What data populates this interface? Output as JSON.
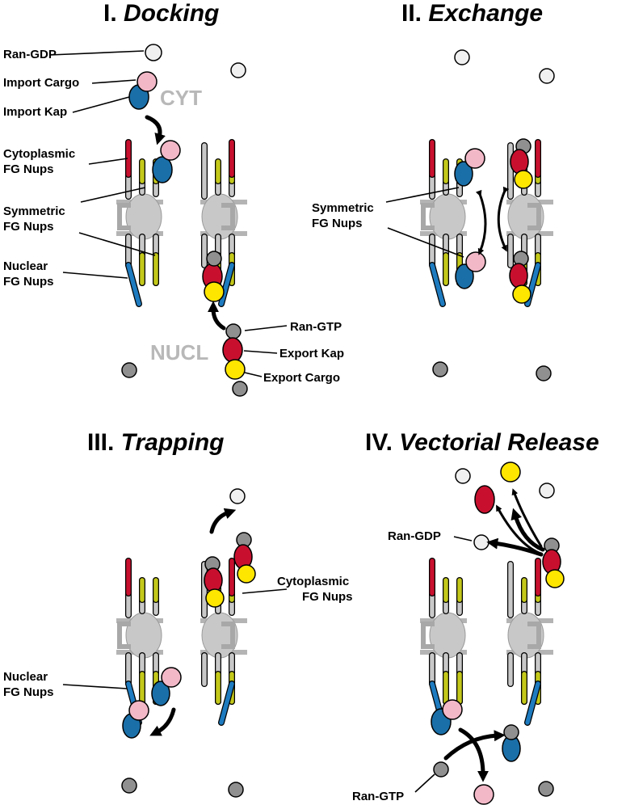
{
  "panels": {
    "p1": {
      "numeral": "I.",
      "name": "Docking"
    },
    "p2": {
      "numeral": "II.",
      "name": "Exchange"
    },
    "p3": {
      "numeral": "III.",
      "name": "Trapping"
    },
    "p4": {
      "numeral": "IV.",
      "name": "Vectorial Release"
    }
  },
  "compartments": {
    "cyt": "CYT",
    "nucl": "NUCL"
  },
  "labels": {
    "ran_gdp": "Ran-GDP",
    "import_cargo": "Import Cargo",
    "import_kap": "Import Kap",
    "cyto_fg_1": "Cytoplasmic",
    "cyto_fg_2": "FG Nups",
    "sym_fg_1": "Symmetric",
    "sym_fg_2": "FG Nups",
    "nuc_fg_1": "Nuclear",
    "nuc_fg_2": "FG Nups",
    "ran_gtp": "Ran-GTP",
    "export_kap": "Export Kap",
    "export_cargo": "Export Cargo"
  },
  "colors": {
    "cytoplasmic_fg": "#c8102e",
    "symmetric_fg": "#c3c81a",
    "nuclear_fg": "#1e7bbf",
    "import_kap": "#1a6fa8",
    "import_cargo": "#f2b8c8",
    "export_kap": "#c8102e",
    "export_cargo": "#ffe600",
    "ran_gdp": "#f0f0f0",
    "ran_gtp": "#909090",
    "scaffold": "#c8c8c8"
  }
}
